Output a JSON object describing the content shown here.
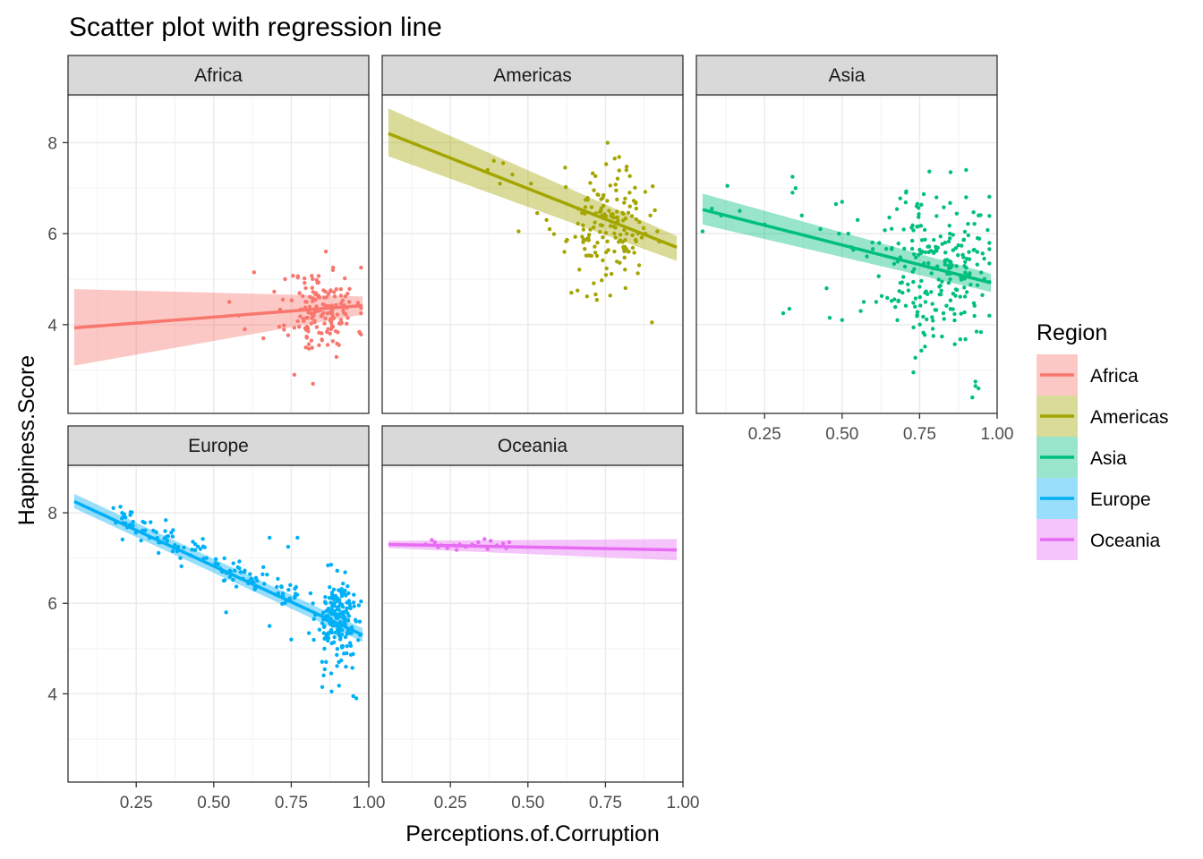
{
  "chart_data": {
    "type": "scatter",
    "title": "Scatter plot with regression line",
    "xlabel": "Perceptions.of.Corruption",
    "ylabel": "Happiness.Score",
    "xlim": [
      0.03,
      1.0
    ],
    "ylim": [
      2.05,
      9.05
    ],
    "x_ticks": [
      0.25,
      0.5,
      0.75,
      1.0
    ],
    "x_tick_labels": [
      "0.25",
      "0.50",
      "0.75",
      "1.00"
    ],
    "y_ticks": [
      4,
      6,
      8
    ],
    "y_tick_labels": [
      "4",
      "6",
      "8"
    ],
    "grid": true,
    "legend": {
      "title": "Region",
      "position": "right"
    },
    "facets": [
      {
        "name": "Africa",
        "color": "#F8766D",
        "fit": {
          "x": [
            0.05,
            0.98
          ],
          "y": [
            3.93,
            4.42
          ],
          "ci_lo": [
            3.1,
            4.22
          ],
          "ci_hi": [
            4.78,
            4.62
          ]
        },
        "cloud": {
          "cx": 0.85,
          "cy": 4.3,
          "sx": 0.055,
          "sy": 0.48,
          "n": 160,
          "seed": 11
        },
        "extra": [
          [
            0.63,
            5.15
          ],
          [
            0.55,
            4.5
          ],
          [
            0.6,
            3.9
          ],
          [
            0.58,
            4.2
          ],
          [
            0.76,
            2.9
          ],
          [
            0.82,
            2.7
          ],
          [
            0.73,
            5.0
          ],
          [
            0.66,
            3.7
          ]
        ]
      },
      {
        "name": "Americas",
        "color": "#A3A500",
        "fit": {
          "x": [
            0.05,
            0.98
          ],
          "y": [
            8.2,
            5.7
          ],
          "ci_lo": [
            7.7,
            5.4
          ],
          "ci_hi": [
            8.75,
            5.95
          ]
        },
        "cloud": {
          "cx": 0.76,
          "cy": 6.15,
          "sx": 0.065,
          "sy": 0.6,
          "n": 160,
          "seed": 23
        },
        "extra": [
          [
            0.37,
            7.4
          ],
          [
            0.39,
            7.6
          ],
          [
            0.42,
            7.55
          ],
          [
            0.45,
            7.3
          ],
          [
            0.41,
            7.1
          ],
          [
            0.53,
            6.45
          ],
          [
            0.56,
            6.3
          ],
          [
            0.57,
            6.1
          ],
          [
            0.47,
            6.05
          ],
          [
            0.51,
            7.1
          ],
          [
            0.62,
            7.45
          ],
          [
            0.9,
            4.05
          ],
          [
            0.64,
            4.7
          ],
          [
            0.66,
            4.75
          ]
        ]
      },
      {
        "name": "Asia",
        "color": "#00BF7D",
        "fit": {
          "x": [
            0.05,
            0.98
          ],
          "y": [
            6.53,
            4.92
          ],
          "ci_lo": [
            6.2,
            4.72
          ],
          "ci_hi": [
            6.88,
            5.12
          ]
        },
        "cloud": {
          "cx": 0.8,
          "cy": 5.3,
          "sx": 0.085,
          "sy": 0.85,
          "n": 230,
          "seed": 37
        },
        "extra": [
          [
            0.05,
            6.05
          ],
          [
            0.08,
            6.55
          ],
          [
            0.13,
            7.05
          ],
          [
            0.11,
            6.4
          ],
          [
            0.17,
            6.5
          ],
          [
            0.25,
            6.2
          ],
          [
            0.34,
            7.25
          ],
          [
            0.34,
            6.9
          ],
          [
            0.35,
            7.0
          ],
          [
            0.33,
            4.35
          ],
          [
            0.31,
            4.25
          ],
          [
            0.37,
            6.4
          ],
          [
            0.43,
            6.1
          ],
          [
            0.48,
            6.65
          ],
          [
            0.49,
            6.0
          ],
          [
            0.5,
            6.7
          ],
          [
            0.55,
            6.3
          ],
          [
            0.53,
            5.7
          ],
          [
            0.58,
            5.5
          ],
          [
            0.46,
            4.15
          ],
          [
            0.5,
            4.1
          ],
          [
            0.57,
            4.5
          ],
          [
            0.56,
            4.3
          ],
          [
            0.61,
            4.5
          ],
          [
            0.45,
            4.8
          ],
          [
            0.52,
            6.0
          ],
          [
            0.93,
            2.65
          ],
          [
            0.94,
            2.6
          ],
          [
            0.92,
            2.4
          ],
          [
            0.73,
            2.95
          ],
          [
            0.93,
            2.75
          ],
          [
            0.9,
            7.4
          ],
          [
            0.85,
            7.35
          ],
          [
            0.9,
            6.8
          ],
          [
            0.94,
            6.4
          ]
        ]
      },
      {
        "name": "Europe",
        "color": "#00B0F6",
        "fit": {
          "x": [
            0.05,
            0.98
          ],
          "y": [
            8.25,
            5.3
          ],
          "ci_lo": [
            8.1,
            5.15
          ],
          "ci_hi": [
            8.42,
            5.45
          ]
        },
        "cloud": {
          "cx": 0.9,
          "cy": 5.6,
          "sx": 0.035,
          "sy": 0.5,
          "n": 200,
          "seed": 53
        },
        "line_cloud": {
          "x0": 0.17,
          "x1": 0.78,
          "noise": 0.18,
          "n": 120,
          "seed": 71
        },
        "extra": [
          [
            0.68,
            7.45
          ],
          [
            0.74,
            7.25
          ],
          [
            0.77,
            7.45
          ],
          [
            0.54,
            5.8
          ],
          [
            0.68,
            5.5
          ],
          [
            0.75,
            5.2
          ],
          [
            0.85,
            4.15
          ],
          [
            0.95,
            3.95
          ],
          [
            0.96,
            3.9
          ],
          [
            0.88,
            4.05
          ],
          [
            0.64,
            6.5
          ],
          [
            0.66,
            6.8
          ]
        ]
      },
      {
        "name": "Oceania",
        "color": "#E76BF3",
        "fit": {
          "x": [
            0.05,
            0.98
          ],
          "y": [
            7.3,
            7.18
          ],
          "ci_lo": [
            7.22,
            6.95
          ],
          "ci_hi": [
            7.38,
            7.42
          ]
        },
        "cloud": {
          "cx": 0.3,
          "cy": 7.3,
          "sx": 0.07,
          "sy": 0.05,
          "n": 0,
          "seed": 89
        },
        "extra": [
          [
            0.17,
            7.3
          ],
          [
            0.2,
            7.35
          ],
          [
            0.22,
            7.28
          ],
          [
            0.19,
            7.4
          ],
          [
            0.24,
            7.22
          ],
          [
            0.26,
            7.28
          ],
          [
            0.28,
            7.3
          ],
          [
            0.3,
            7.25
          ],
          [
            0.32,
            7.3
          ],
          [
            0.34,
            7.35
          ],
          [
            0.36,
            7.42
          ],
          [
            0.38,
            7.38
          ],
          [
            0.4,
            7.28
          ],
          [
            0.42,
            7.32
          ],
          [
            0.43,
            7.22
          ],
          [
            0.37,
            7.2
          ],
          [
            0.27,
            7.18
          ],
          [
            0.21,
            7.24
          ],
          [
            0.44,
            7.35
          ],
          [
            0.33,
            7.27
          ]
        ]
      }
    ]
  }
}
